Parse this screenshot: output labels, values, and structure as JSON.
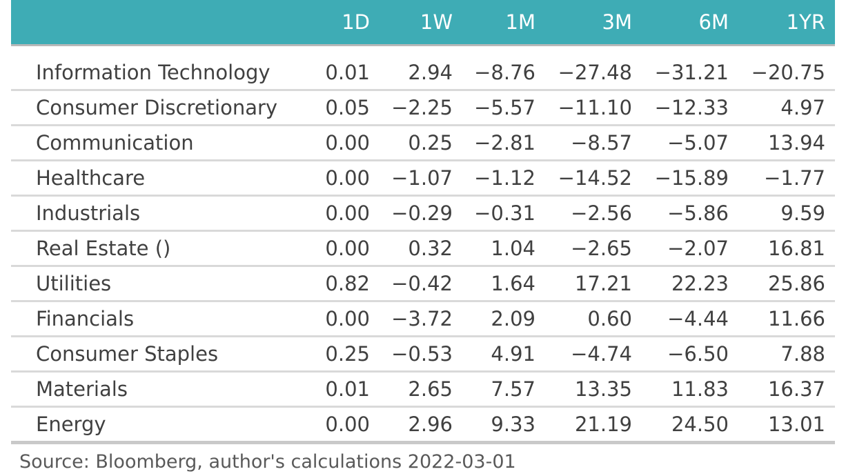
{
  "chart_data": {
    "type": "table",
    "columns": [
      "",
      "1D",
      "1W",
      "1M",
      "3M",
      "6M",
      "1YR"
    ],
    "rows": [
      {
        "sector": "Information Technology",
        "values": [
          "0.01",
          "2.94",
          "−8.76",
          "−27.48",
          "−31.21",
          "−20.75"
        ]
      },
      {
        "sector": "Consumer Discretionary",
        "values": [
          "0.05",
          "−2.25",
          "−5.57",
          "−11.10",
          "−12.33",
          "4.97"
        ]
      },
      {
        "sector": "Communication",
        "values": [
          "0.00",
          "0.25",
          "−2.81",
          "−8.57",
          "−5.07",
          "13.94"
        ]
      },
      {
        "sector": "Healthcare",
        "values": [
          "0.00",
          "−1.07",
          "−1.12",
          "−14.52",
          "−15.89",
          "−1.77"
        ]
      },
      {
        "sector": "Industrials",
        "values": [
          "0.00",
          "−0.29",
          "−0.31",
          "−2.56",
          "−5.86",
          "9.59"
        ]
      },
      {
        "sector": "Real Estate ()",
        "values": [
          "0.00",
          "0.32",
          "1.04",
          "−2.65",
          "−2.07",
          "16.81"
        ]
      },
      {
        "sector": "Utilities",
        "values": [
          "0.82",
          "−0.42",
          "1.64",
          "17.21",
          "22.23",
          "25.86"
        ]
      },
      {
        "sector": "Financials",
        "values": [
          "0.00",
          "−3.72",
          "2.09",
          "0.60",
          "−4.44",
          "11.66"
        ]
      },
      {
        "sector": "Consumer Staples",
        "values": [
          "0.25",
          "−0.53",
          "4.91",
          "−4.74",
          "−6.50",
          "7.88"
        ]
      },
      {
        "sector": "Materials",
        "values": [
          "0.01",
          "2.65",
          "7.57",
          "13.35",
          "11.83",
          "16.37"
        ]
      },
      {
        "sector": "Energy",
        "values": [
          "0.00",
          "2.96",
          "9.33",
          "21.19",
          "24.50",
          "13.01"
        ]
      }
    ],
    "source": "Source: Bloomberg, author's calculations 2022-03-01",
    "header_color": "#3eacb5"
  }
}
